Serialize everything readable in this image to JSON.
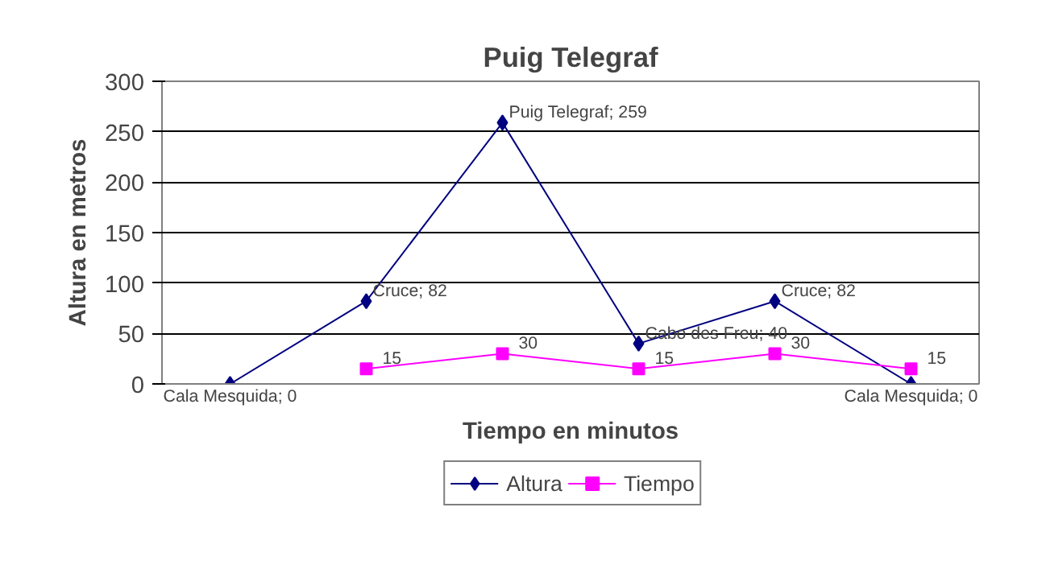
{
  "chart_data": {
    "type": "line",
    "title": "Puig Telegraf",
    "xlabel": "Tiempo en minutos",
    "ylabel": "Altura en metros",
    "categories": [
      null,
      null,
      null,
      null,
      null,
      null
    ],
    "series": [
      {
        "name": "Altura",
        "color": "#000080",
        "marker": "diamond",
        "values": [
          0,
          82,
          259,
          40,
          82,
          0
        ],
        "value_labels": [
          "Cala Mesquida; 0",
          "Cruce; 82",
          "Puig Telegraf; 259",
          "Cabo des Freu; 40",
          "Cruce; 82",
          "Cala Mesquida; 0"
        ]
      },
      {
        "name": "Tiempo",
        "color": "#ff00ff",
        "marker": "square",
        "values": [
          null,
          15,
          30,
          15,
          30,
          15
        ],
        "value_labels": [
          null,
          "15",
          "30",
          "15",
          "30",
          "15"
        ]
      }
    ],
    "ylim": [
      0,
      300
    ],
    "yticks": [
      0,
      50,
      100,
      150,
      200,
      250,
      300
    ],
    "grid": "y",
    "legend": "bottom",
    "line_style": "solid"
  }
}
